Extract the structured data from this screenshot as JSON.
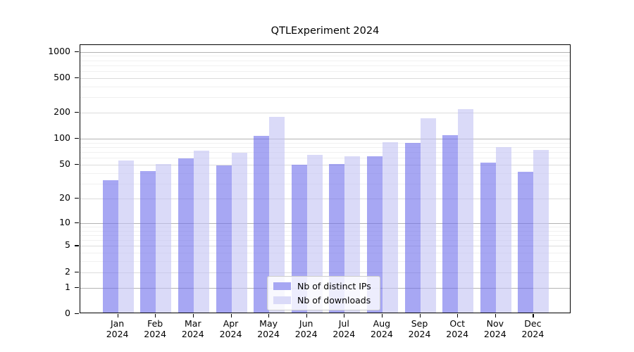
{
  "title": "QTLExperiment 2024",
  "chart_data": {
    "type": "bar",
    "title": "QTLExperiment 2024",
    "categories": [
      "Jan",
      "Feb",
      "Mar",
      "Apr",
      "May",
      "Jun",
      "Jul",
      "Aug",
      "Sep",
      "Oct",
      "Nov",
      "Dec"
    ],
    "year": "2024",
    "series": [
      {
        "name": "Nb of distinct IPs",
        "color": "#a7a7f3",
        "fill": "rgba(108,108,235,0.6)",
        "values": [
          32,
          41,
          57,
          47,
          104,
          48,
          49,
          61,
          86,
          107,
          51,
          40
        ]
      },
      {
        "name": "Nb of downloads",
        "color": "#dadaf8",
        "fill": "rgba(193,193,243,0.6)",
        "values": [
          54,
          49,
          71,
          67,
          174,
          63,
          60,
          89,
          166,
          212,
          77,
          72
        ]
      }
    ],
    "y_axis": {
      "scale": "log1p",
      "ticks": [
        0,
        1,
        2,
        5,
        10,
        20,
        50,
        100,
        200,
        500,
        1000
      ],
      "emphasized_ticks": [
        1,
        10,
        100,
        1000
      ],
      "minor_ticks": [
        3,
        4,
        6,
        7,
        8,
        9,
        30,
        40,
        60,
        70,
        80,
        90,
        300,
        400,
        600,
        700,
        800,
        900
      ],
      "range": [
        0,
        1000
      ]
    },
    "grid": true,
    "legend_position": "bottom-center-inside"
  }
}
